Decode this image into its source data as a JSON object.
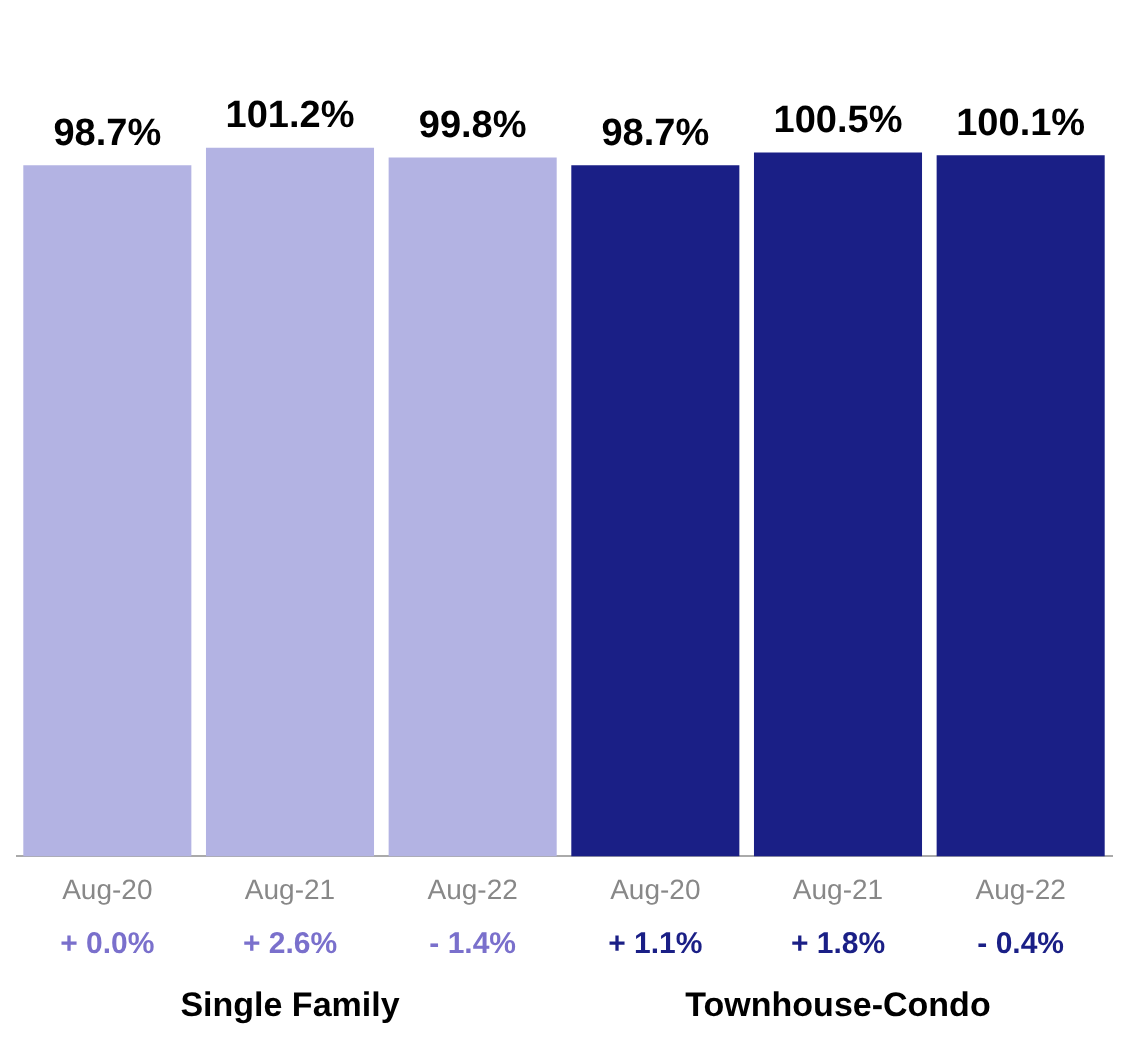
{
  "chart_data": {
    "type": "bar",
    "categories": [
      "Aug-20",
      "Aug-21",
      "Aug-22",
      "Aug-20",
      "Aug-21",
      "Aug-22"
    ],
    "values": [
      98.7,
      101.2,
      99.8,
      98.7,
      100.5,
      100.1
    ],
    "colors": [
      "#b3b3e3",
      "#b3b3e3",
      "#b3b3e3",
      "#1a1f86",
      "#1a1f86",
      "#1a1f86"
    ],
    "value_labels": [
      "98.7%",
      "101.2%",
      "99.8%",
      "98.7%",
      "100.5%",
      "100.1%"
    ],
    "grid": false,
    "legend": false,
    "annotations": [
      "+ 0.0%",
      "+ 2.6%",
      "- 1.4%",
      "+ 1.1%",
      "+ 1.8%",
      "- 0.4%",
      "Single Family",
      "Townhouse-Condo"
    ]
  }
}
